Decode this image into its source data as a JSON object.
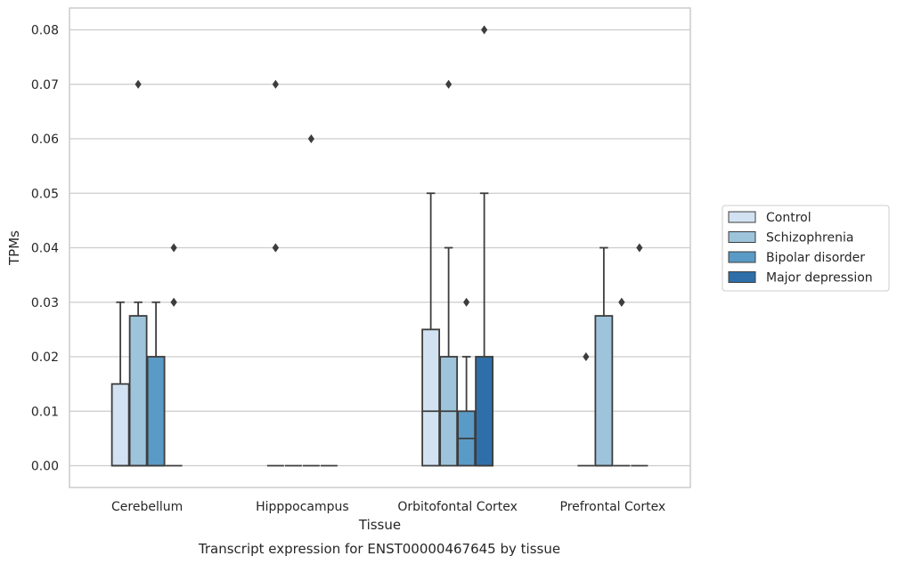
{
  "chart_data": {
    "type": "box",
    "xlabel": "Tissue",
    "ylabel": "TPMs",
    "caption": "Transcript expression for ENST00000467645 by tissue",
    "ylim": [
      -0.004,
      0.084
    ],
    "yticks": [
      "0.00",
      "0.01",
      "0.02",
      "0.03",
      "0.04",
      "0.05",
      "0.06",
      "0.07",
      "0.08"
    ],
    "grid": "horizontal",
    "legend_placement": "right",
    "categories": [
      "Cerebellum",
      "Hipppocampus",
      "Orbitofontal Cortex",
      "Prefrontal Cortex"
    ],
    "series": [
      {
        "name": "Control",
        "color": "#d2e2f2",
        "boxes": [
          {
            "q1": 0.0,
            "median": 0.0,
            "q3": 0.015,
            "whisker_low": 0.0,
            "whisker_high": 0.03,
            "outliers": []
          },
          {
            "q1": 0.0,
            "median": 0.0,
            "q3": 0.0,
            "whisker_low": 0.0,
            "whisker_high": 0.0,
            "outliers": [
              0.04,
              0.04,
              0.07
            ]
          },
          {
            "q1": 0.0,
            "median": 0.01,
            "q3": 0.025,
            "whisker_low": 0.0,
            "whisker_high": 0.05,
            "outliers": []
          },
          {
            "q1": 0.0,
            "median": 0.0,
            "q3": 0.0,
            "whisker_low": 0.0,
            "whisker_high": 0.0,
            "outliers": [
              0.02
            ]
          }
        ]
      },
      {
        "name": "Schizophrenia",
        "color": "#9dc4db",
        "boxes": [
          {
            "q1": 0.0,
            "median": 0.0,
            "q3": 0.0275,
            "whisker_low": 0.0,
            "whisker_high": 0.03,
            "outliers": [
              0.07
            ]
          },
          {
            "q1": 0.0,
            "median": 0.0,
            "q3": 0.0,
            "whisker_low": 0.0,
            "whisker_high": 0.0,
            "outliers": []
          },
          {
            "q1": 0.0,
            "median": 0.01,
            "q3": 0.02,
            "whisker_low": 0.0,
            "whisker_high": 0.04,
            "outliers": [
              0.07
            ]
          },
          {
            "q1": 0.0,
            "median": 0.0,
            "q3": 0.0275,
            "whisker_low": 0.0,
            "whisker_high": 0.04,
            "outliers": []
          }
        ]
      },
      {
        "name": "Bipolar disorder",
        "color": "#5a9ac6",
        "boxes": [
          {
            "q1": 0.0,
            "median": 0.0,
            "q3": 0.02,
            "whisker_low": 0.0,
            "whisker_high": 0.03,
            "outliers": []
          },
          {
            "q1": 0.0,
            "median": 0.0,
            "q3": 0.0,
            "whisker_low": 0.0,
            "whisker_high": 0.0,
            "outliers": [
              0.06
            ]
          },
          {
            "q1": 0.0,
            "median": 0.005,
            "q3": 0.01,
            "whisker_low": 0.0,
            "whisker_high": 0.02,
            "outliers": [
              0.03
            ]
          },
          {
            "q1": 0.0,
            "median": 0.0,
            "q3": 0.0,
            "whisker_low": 0.0,
            "whisker_high": 0.0,
            "outliers": [
              0.03,
              0.03
            ]
          }
        ]
      },
      {
        "name": "Major depression",
        "color": "#2e6fa9",
        "boxes": [
          {
            "q1": 0.0,
            "median": 0.0,
            "q3": 0.0,
            "whisker_low": 0.0,
            "whisker_high": 0.0,
            "outliers": [
              0.03,
              0.03,
              0.04
            ]
          },
          {
            "q1": 0.0,
            "median": 0.0,
            "q3": 0.0,
            "whisker_low": 0.0,
            "whisker_high": 0.0,
            "outliers": []
          },
          {
            "q1": 0.0,
            "median": 0.0,
            "q3": 0.02,
            "whisker_low": 0.0,
            "whisker_high": 0.05,
            "outliers": [
              0.08
            ]
          },
          {
            "q1": 0.0,
            "median": 0.0,
            "q3": 0.0,
            "whisker_low": 0.0,
            "whisker_high": 0.0,
            "outliers": [
              0.04
            ]
          }
        ]
      }
    ]
  }
}
